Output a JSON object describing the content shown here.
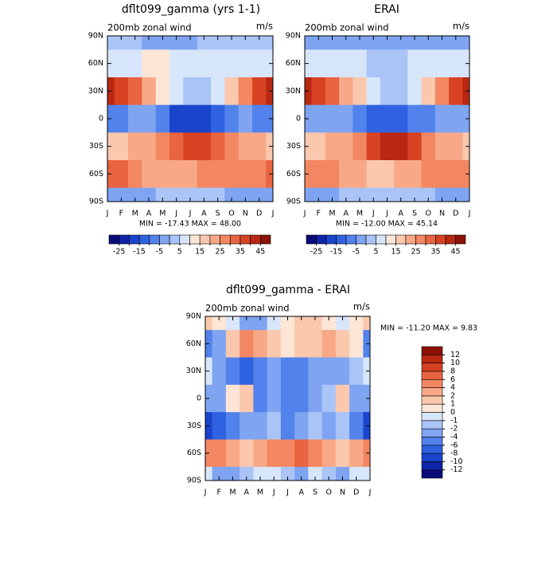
{
  "panels": [
    {
      "title": "dflt099_gamma (yrs 1-1)",
      "subtitle_left": "200mb zonal wind",
      "subtitle_right": "m/s",
      "stats": "MIN = -17.43 MAX =  48.00",
      "x_labels": [
        "J",
        "F",
        "M",
        "A",
        "M",
        "J",
        "J",
        "A",
        "S",
        "O",
        "N",
        "D",
        "J"
      ],
      "y_labels": [
        "90N",
        "60N",
        "30N",
        "0",
        "30S",
        "60S",
        "90S"
      ],
      "field": [
        [
          3,
          3,
          2,
          0,
          -2,
          -2,
          0,
          2,
          2,
          2,
          2,
          3,
          3
        ],
        [
          8,
          8,
          10,
          12,
          12,
          10,
          8,
          8,
          8,
          10,
          10,
          10,
          8
        ],
        [
          42,
          40,
          35,
          25,
          15,
          8,
          5,
          5,
          10,
          20,
          30,
          38,
          42
        ],
        [
          -5,
          -5,
          -3,
          -2,
          -8,
          -15,
          -17,
          -15,
          -10,
          -5,
          -3,
          -5,
          -5
        ],
        [
          20,
          20,
          22,
          25,
          30,
          35,
          40,
          40,
          35,
          30,
          25,
          22,
          20
        ],
        [
          35,
          35,
          30,
          25,
          25,
          25,
          25,
          30,
          30,
          30,
          30,
          30,
          35
        ],
        [
          0,
          -2,
          -2,
          0,
          2,
          5,
          5,
          3,
          2,
          0,
          0,
          -2,
          0
        ]
      ],
      "colorbar": 0
    },
    {
      "title": "ERAI",
      "subtitle_left": "200mb zonal wind",
      "subtitle_right": "m/s",
      "stats": "MIN = -12.00 MAX =  45.14",
      "x_labels": [
        "J",
        "F",
        "M",
        "A",
        "M",
        "J",
        "J",
        "A",
        "S",
        "O",
        "N",
        "D",
        "J"
      ],
      "y_labels": [
        "90N",
        "60N",
        "30N",
        "0",
        "30S",
        "60S",
        "90S"
      ],
      "field": [
        [
          -3,
          -3,
          -3,
          0,
          0,
          -2,
          -2,
          -2,
          -2,
          -3,
          -3,
          -3,
          -3
        ],
        [
          10,
          10,
          8,
          8,
          8,
          5,
          5,
          5,
          8,
          10,
          10,
          10,
          10
        ],
        [
          42,
          40,
          35,
          25,
          18,
          10,
          5,
          5,
          10,
          20,
          30,
          40,
          42
        ],
        [
          -3,
          -3,
          -2,
          -3,
          -5,
          -10,
          -12,
          -10,
          -8,
          -5,
          -3,
          -3,
          -3
        ],
        [
          20,
          20,
          22,
          25,
          30,
          38,
          45,
          42,
          38,
          30,
          25,
          22,
          20
        ],
        [
          30,
          30,
          28,
          25,
          22,
          20,
          20,
          22,
          25,
          28,
          28,
          30,
          30
        ],
        [
          0,
          0,
          0,
          2,
          3,
          5,
          5,
          5,
          3,
          2,
          0,
          0,
          0
        ]
      ],
      "colorbar": 1
    },
    {
      "title": "dflt099_gamma - ERAI",
      "subtitle_left": "200mb zonal wind",
      "subtitle_right": "m/s",
      "stats": "MIN = -11.20 MAX =   9.83",
      "x_labels": [
        "J",
        "F",
        "M",
        "A",
        "M",
        "J",
        "J",
        "A",
        "S",
        "O",
        "N",
        "D",
        "J"
      ],
      "y_labels": [
        "90N",
        "60N",
        "30N",
        "0",
        "30S",
        "60S",
        "90S"
      ],
      "field": [
        [
          2,
          1,
          0,
          -2,
          -2,
          0,
          1,
          2,
          2,
          1,
          0,
          1,
          2
        ],
        [
          -4,
          -2,
          2,
          6,
          4,
          2,
          1,
          2,
          2,
          4,
          2,
          1,
          -4
        ],
        [
          0,
          -2,
          -4,
          -6,
          -4,
          -2,
          -4,
          -4,
          -2,
          -3,
          -2,
          -1,
          0
        ],
        [
          -2,
          -2,
          1,
          2,
          -4,
          -3,
          -5,
          -5,
          -2,
          -1,
          2,
          -2,
          -2
        ],
        [
          -8,
          -6,
          -4,
          -2,
          -2,
          -1,
          -4,
          -3,
          -1,
          -2,
          -1,
          -5,
          -8
        ],
        [
          5,
          6,
          4,
          2,
          4,
          6,
          6,
          8,
          5,
          3,
          2,
          4,
          5
        ],
        [
          0,
          -2,
          -2,
          -1,
          0,
          0,
          -1,
          -2,
          0,
          -1,
          -2,
          0,
          0
        ]
      ],
      "colorbar": 2
    }
  ],
  "colorbars": [
    {
      "levels": [
        -25,
        -20,
        -15,
        -10,
        -5,
        0,
        5,
        10,
        15,
        20,
        25,
        30,
        35,
        40,
        45
      ],
      "colors": [
        "#0a0a78",
        "#1024a8",
        "#1a44cc",
        "#2f62e0",
        "#5282ec",
        "#7ea4f2",
        "#aac4f8",
        "#d8e6fc",
        "#fde6d6",
        "#fbc8ae",
        "#f8a886",
        "#f38762",
        "#e96440",
        "#d64222",
        "#b82812",
        "#8a1206"
      ]
    },
    {
      "levels": [
        -25,
        -20,
        -15,
        -10,
        -5,
        0,
        5,
        10,
        15,
        20,
        25,
        30,
        35,
        40,
        45
      ],
      "colors": [
        "#0a0a78",
        "#1024a8",
        "#1a44cc",
        "#2f62e0",
        "#5282ec",
        "#7ea4f2",
        "#aac4f8",
        "#d8e6fc",
        "#fde6d6",
        "#fbc8ae",
        "#f8a886",
        "#f38762",
        "#e96440",
        "#d64222",
        "#b82812",
        "#8a1206"
      ]
    },
    {
      "levels": [
        -12,
        -10,
        -8,
        -6,
        -4,
        -2,
        -1,
        0,
        1,
        2,
        4,
        6,
        8,
        10,
        12
      ],
      "colors": [
        "#0a0a78",
        "#1024a8",
        "#1a44cc",
        "#2f62e0",
        "#5282ec",
        "#7ea4f2",
        "#aac4f8",
        "#d8e6fc",
        "#fde6d6",
        "#fbc8ae",
        "#f8a886",
        "#f38762",
        "#e96440",
        "#d64222",
        "#b82812",
        "#8a1206"
      ]
    }
  ]
}
